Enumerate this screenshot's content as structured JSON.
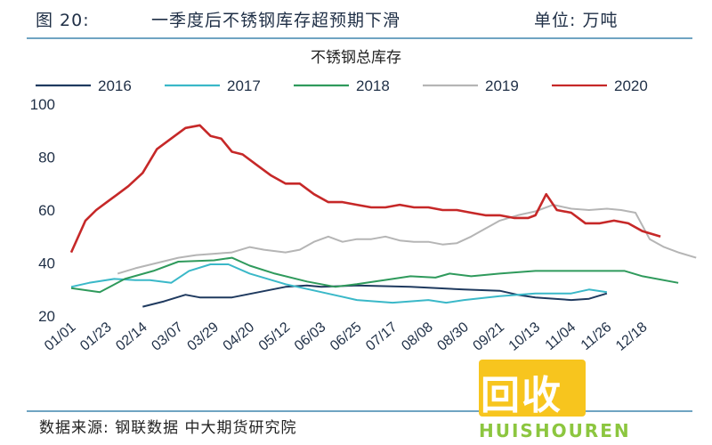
{
  "header": {
    "figure_label": "图 20:",
    "title": "一季度后不锈钢库存超预期下滑",
    "unit": "单位: 万吨"
  },
  "footer": {
    "source": "数据来源: 钢联数据 中大期货研究院"
  },
  "watermark": {
    "text": "回收",
    "subtext": "HUISHOUREN",
    "color": "#8cc63f",
    "logo_color": "#f7c51e"
  },
  "chart_data": {
    "type": "line",
    "title": "不锈钢总库存",
    "ylim": [
      20,
      100
    ],
    "yticks": [
      20,
      40,
      60,
      80,
      100
    ],
    "grid": false,
    "legend_position": "top",
    "x_tick_labels": [
      "01/01",
      "01/23",
      "02/14",
      "03/07",
      "03/29",
      "04/20",
      "05/12",
      "06/03",
      "06/25",
      "07/17",
      "08/08",
      "08/30",
      "09/21",
      "10/13",
      "11/04",
      "11/26",
      "12/18"
    ],
    "series": [
      {
        "name": "2016",
        "color": "#1f3a5f",
        "points": [
          [
            2.0,
            23.5
          ],
          [
            2.6,
            25.5
          ],
          [
            3.2,
            28
          ],
          [
            3.6,
            27
          ],
          [
            4.5,
            27
          ],
          [
            6,
            31
          ],
          [
            6.6,
            31.5
          ],
          [
            7,
            31
          ],
          [
            8,
            31.5
          ],
          [
            9.5,
            31
          ],
          [
            11,
            30
          ],
          [
            12,
            29.5
          ],
          [
            12.5,
            28
          ],
          [
            13,
            27
          ],
          [
            14,
            26
          ],
          [
            14.5,
            26.5
          ],
          [
            15,
            28.5
          ]
        ]
      },
      {
        "name": "2017",
        "color": "#3ab8c8",
        "points": [
          [
            0,
            31
          ],
          [
            0.5,
            32.5
          ],
          [
            1.2,
            34
          ],
          [
            1.8,
            33.5
          ],
          [
            2.2,
            33.5
          ],
          [
            2.8,
            32.5
          ],
          [
            3.3,
            37
          ],
          [
            3.9,
            39.5
          ],
          [
            4.4,
            39.5
          ],
          [
            5,
            36
          ],
          [
            6,
            32
          ],
          [
            7,
            29
          ],
          [
            8,
            26
          ],
          [
            9,
            25
          ],
          [
            10,
            26
          ],
          [
            10.5,
            25
          ],
          [
            11,
            26
          ],
          [
            12,
            27.5
          ],
          [
            13,
            28.5
          ],
          [
            14,
            28.5
          ],
          [
            14.5,
            30
          ],
          [
            15,
            29
          ]
        ]
      },
      {
        "name": "2018",
        "color": "#2f9a5c",
        "points": [
          [
            0,
            30.5
          ],
          [
            0.8,
            29
          ],
          [
            1.5,
            34
          ],
          [
            2.3,
            37
          ],
          [
            3,
            40.5
          ],
          [
            4,
            41
          ],
          [
            4.5,
            42
          ],
          [
            5,
            39
          ],
          [
            5.7,
            36
          ],
          [
            6.6,
            33
          ],
          [
            7.4,
            31
          ],
          [
            8,
            32
          ],
          [
            9,
            34
          ],
          [
            9.5,
            35
          ],
          [
            10.2,
            34.5
          ],
          [
            10.6,
            36
          ],
          [
            11.2,
            35
          ],
          [
            12,
            36
          ],
          [
            13,
            37
          ],
          [
            14,
            37
          ],
          [
            15,
            37
          ],
          [
            15.5,
            37
          ],
          [
            16,
            35
          ],
          [
            17,
            32.5
          ]
        ]
      },
      {
        "name": "2019",
        "color": "#b5b5b5",
        "points": [
          [
            1.3,
            36
          ],
          [
            1.8,
            38
          ],
          [
            2.4,
            40
          ],
          [
            3,
            42
          ],
          [
            3.5,
            43
          ],
          [
            4,
            43.5
          ],
          [
            4.5,
            44
          ],
          [
            5,
            46
          ],
          [
            5.4,
            45
          ],
          [
            6,
            44
          ],
          [
            6.4,
            45
          ],
          [
            6.8,
            48
          ],
          [
            7.2,
            50
          ],
          [
            7.6,
            48
          ],
          [
            8,
            49
          ],
          [
            8.4,
            49
          ],
          [
            8.8,
            50
          ],
          [
            9.2,
            48.5
          ],
          [
            9.6,
            48
          ],
          [
            10,
            48
          ],
          [
            10.4,
            47
          ],
          [
            10.8,
            47.5
          ],
          [
            11.2,
            50
          ],
          [
            11.6,
            53
          ],
          [
            12,
            56
          ],
          [
            12.5,
            58
          ],
          [
            13,
            59.5
          ],
          [
            13.5,
            62
          ],
          [
            14,
            60.5
          ],
          [
            14.5,
            60
          ],
          [
            15,
            60.5
          ],
          [
            15.4,
            60
          ],
          [
            15.8,
            59
          ],
          [
            16.2,
            49
          ],
          [
            16.6,
            46
          ],
          [
            17,
            44
          ],
          [
            17.5,
            42
          ]
        ]
      },
      {
        "name": "2020",
        "color": "#c62828",
        "points": [
          [
            0,
            44
          ],
          [
            0.4,
            56
          ],
          [
            0.7,
            60
          ],
          [
            1.0,
            63
          ],
          [
            1.3,
            66
          ],
          [
            1.6,
            69
          ],
          [
            2.0,
            74
          ],
          [
            2.4,
            83
          ],
          [
            2.8,
            87
          ],
          [
            3.2,
            91
          ],
          [
            3.6,
            92
          ],
          [
            3.9,
            88
          ],
          [
            4.2,
            87
          ],
          [
            4.5,
            82
          ],
          [
            4.8,
            81
          ],
          [
            5.2,
            77
          ],
          [
            5.6,
            73
          ],
          [
            6.0,
            70
          ],
          [
            6.4,
            70
          ],
          [
            6.8,
            66
          ],
          [
            7.2,
            63
          ],
          [
            7.6,
            63
          ],
          [
            8.0,
            62
          ],
          [
            8.4,
            61
          ],
          [
            8.8,
            61
          ],
          [
            9.2,
            62
          ],
          [
            9.6,
            61
          ],
          [
            10.0,
            61
          ],
          [
            10.4,
            60
          ],
          [
            10.8,
            60
          ],
          [
            11.2,
            59
          ],
          [
            11.6,
            58
          ],
          [
            12.0,
            58
          ],
          [
            12.4,
            57
          ],
          [
            12.8,
            57
          ],
          [
            13.0,
            58
          ],
          [
            13.3,
            66
          ],
          [
            13.6,
            60
          ],
          [
            14.0,
            59
          ],
          [
            14.4,
            55
          ],
          [
            14.8,
            55
          ],
          [
            15.2,
            56
          ],
          [
            15.6,
            55
          ],
          [
            16.0,
            52
          ],
          [
            16.5,
            50
          ]
        ]
      }
    ]
  }
}
